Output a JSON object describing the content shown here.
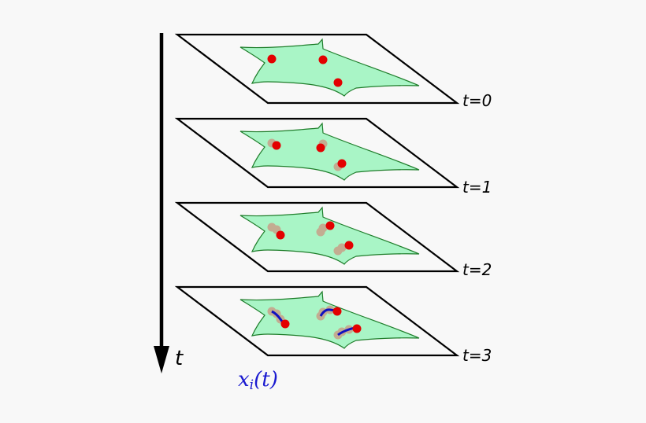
{
  "planes": [
    {
      "label": "t=0"
    },
    {
      "label": "t=1"
    },
    {
      "label": "t=2"
    },
    {
      "label": "t=3"
    }
  ],
  "axis_label": "t",
  "trajectory_label": {
    "base": "x",
    "subscript": "i",
    "suffix": "(t)"
  }
}
